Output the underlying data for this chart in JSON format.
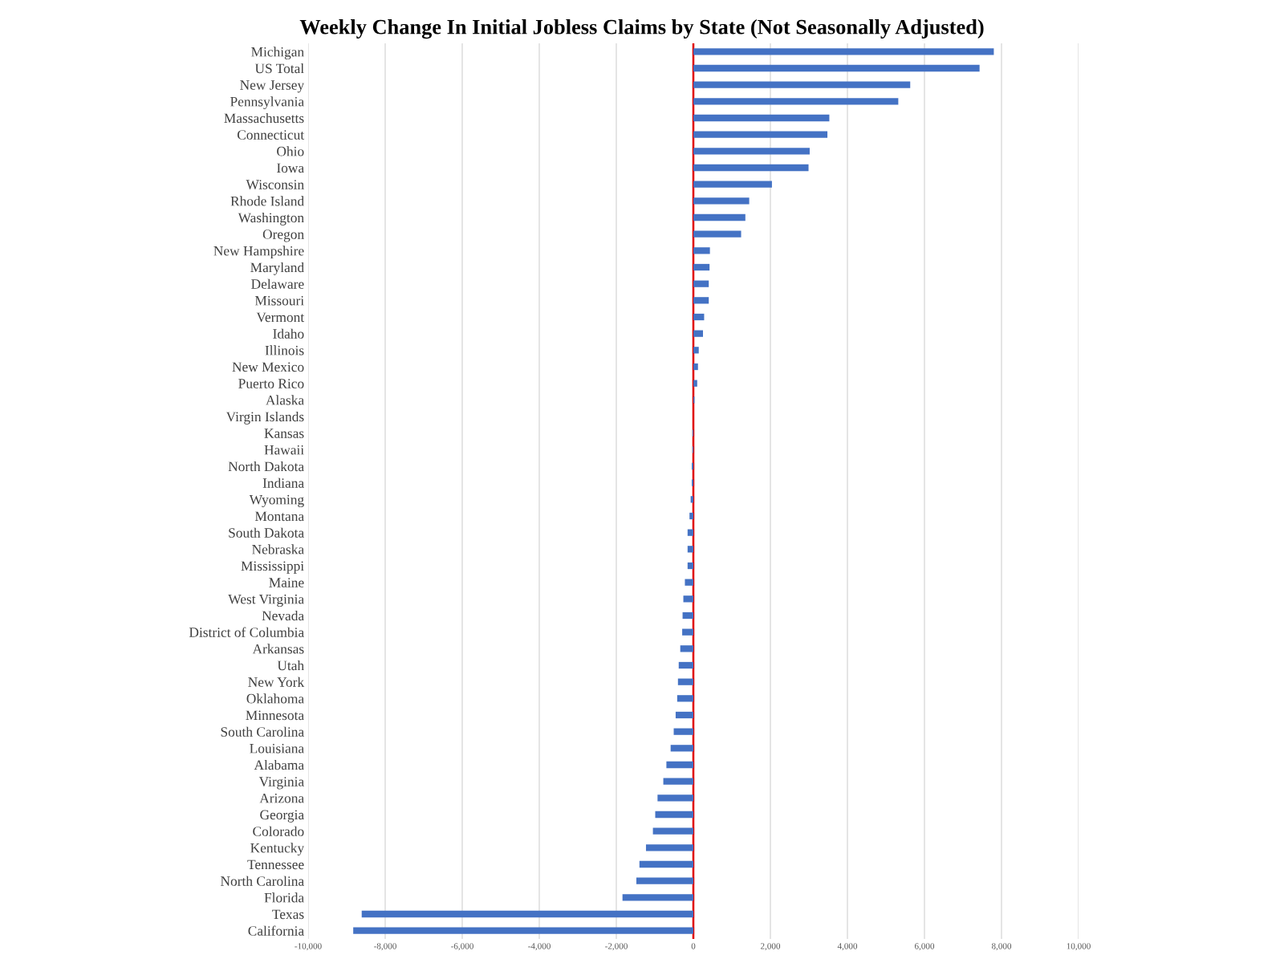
{
  "chart_data": {
    "type": "bar",
    "orientation": "horizontal",
    "title": "Weekly Change In Initial Jobless Claims by State (Not Seasonally Adjusted)",
    "categories": [
      "Michigan",
      "US Total",
      "New Jersey",
      "Pennsylvania",
      "Massachusetts",
      "Connecticut",
      "Ohio",
      "Iowa",
      "Wisconsin",
      "Rhode Island",
      "Washington",
      "Oregon",
      "New Hampshire",
      "Maryland",
      "Delaware",
      "Missouri",
      "Vermont",
      "Idaho",
      "Illinois",
      "New Mexico",
      "Puerto Rico",
      "Alaska",
      "Virgin Islands",
      "Kansas",
      "Hawaii",
      "North Dakota",
      "Indiana",
      "Wyoming",
      "Montana",
      "South Dakota",
      "Nebraska",
      "Mississippi",
      "Maine",
      "West Virginia",
      "Nevada",
      "District of Columbia",
      "Arkansas",
      "Utah",
      "New York",
      "Oklahoma",
      "Minnesota",
      "South Carolina",
      "Louisiana",
      "Alabama",
      "Virginia",
      "Arizona",
      "Georgia",
      "Colorado",
      "Kentucky",
      "Tennessee",
      "North Carolina",
      "Florida",
      "Texas",
      "California"
    ],
    "values": [
      7800,
      7430,
      5630,
      5320,
      3530,
      3480,
      3020,
      2990,
      2040,
      1450,
      1350,
      1240,
      430,
      420,
      400,
      400,
      280,
      250,
      140,
      120,
      100,
      30,
      0,
      -20,
      -20,
      -40,
      -40,
      -70,
      -100,
      -150,
      -150,
      -150,
      -220,
      -260,
      -280,
      -290,
      -340,
      -380,
      -400,
      -420,
      -460,
      -510,
      -590,
      -700,
      -780,
      -930,
      -990,
      -1050,
      -1230,
      -1400,
      -1480,
      -1840,
      -8610,
      -8830
    ],
    "color": "#4472c4",
    "xlim": [
      -10000,
      10000
    ],
    "xticks": [
      {
        "value": -10000,
        "label": "-10,000"
      },
      {
        "value": -8000,
        "label": "-8,000"
      },
      {
        "value": -6000,
        "label": "-6,000"
      },
      {
        "value": -4000,
        "label": "-4,000"
      },
      {
        "value": -2000,
        "label": "-2,000"
      },
      0,
      {
        "value": 2000,
        "label": "2,000"
      },
      {
        "value": 4000,
        "label": "4,000"
      },
      {
        "value": 6000,
        "label": "6,000"
      },
      {
        "value": 8000,
        "label": "8,000"
      },
      {
        "value": 10000,
        "label": "10,000"
      }
    ],
    "grid": "x",
    "ref_lines": [
      {
        "axis": "x",
        "value": 0,
        "label": null,
        "color": "#e00000"
      }
    ]
  }
}
